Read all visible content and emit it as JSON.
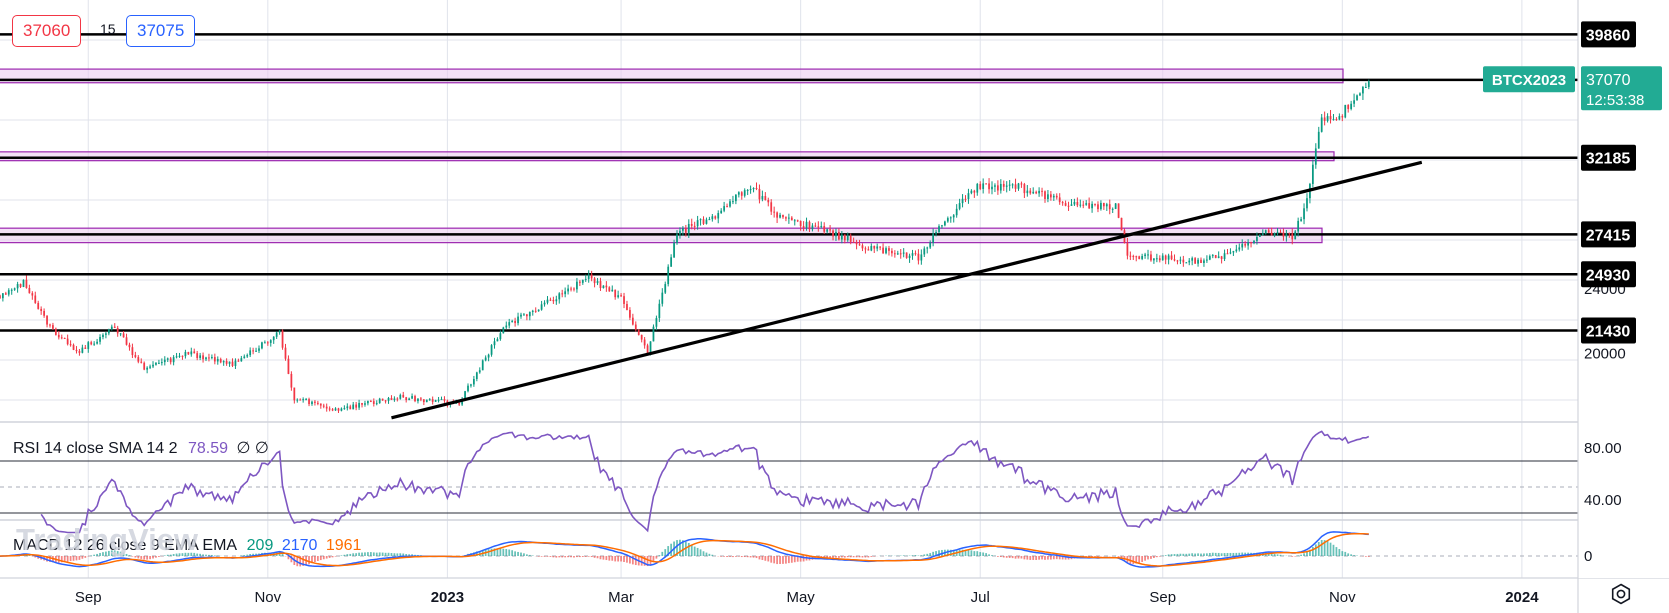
{
  "chart_data": {
    "type": "candlestick",
    "symbol": "BTCX2023",
    "last_price": "37070",
    "countdown": "12:53:38",
    "bid": "37060",
    "ask": "37075",
    "spread": "15",
    "x_tick_labels": [
      "Sep",
      "Nov",
      "2023",
      "Mar",
      "May",
      "Jul",
      "Sep",
      "Nov",
      "2024"
    ],
    "y_tick_labels": [
      "20000",
      "24000"
    ],
    "ylim": [
      15800,
      42000
    ],
    "horizontal_levels": [
      "39860",
      "37030",
      "32185",
      "27415",
      "24930",
      "21430"
    ],
    "resistance_zones": [
      [
        36850,
        37700
      ],
      [
        32000,
        32550
      ],
      [
        26900,
        27800
      ]
    ],
    "trendline": {
      "from": [
        "2022-12-13",
        16000
      ],
      "to": [
        "2023-11-28",
        31900
      ]
    },
    "watermark": "TradingView",
    "price_closes_approx": [
      {
        "date": "2022-08-01",
        "close": 23500
      },
      {
        "date": "2022-08-10",
        "close": 24400
      },
      {
        "date": "2022-08-20",
        "close": 21400
      },
      {
        "date": "2022-08-28",
        "close": 20100
      },
      {
        "date": "2022-09-10",
        "close": 21600
      },
      {
        "date": "2022-09-20",
        "close": 19000
      },
      {
        "date": "2022-10-05",
        "close": 20000
      },
      {
        "date": "2022-10-20",
        "close": 19300
      },
      {
        "date": "2022-11-05",
        "close": 21300
      },
      {
        "date": "2022-11-10",
        "close": 17200
      },
      {
        "date": "2022-11-25",
        "close": 16500
      },
      {
        "date": "2022-12-15",
        "close": 17300
      },
      {
        "date": "2023-01-05",
        "close": 16900
      },
      {
        "date": "2023-01-20",
        "close": 21600
      },
      {
        "date": "2023-02-05",
        "close": 23300
      },
      {
        "date": "2023-02-18",
        "close": 24700
      },
      {
        "date": "2023-03-01",
        "close": 23500
      },
      {
        "date": "2023-03-10",
        "close": 20000
      },
      {
        "date": "2023-03-20",
        "close": 27500
      },
      {
        "date": "2023-04-01",
        "close": 28500
      },
      {
        "date": "2023-04-14",
        "close": 30400
      },
      {
        "date": "2023-04-25",
        "close": 28300
      },
      {
        "date": "2023-05-08",
        "close": 27800
      },
      {
        "date": "2023-05-25",
        "close": 26500
      },
      {
        "date": "2023-06-10",
        "close": 26000
      },
      {
        "date": "2023-06-20",
        "close": 28500
      },
      {
        "date": "2023-07-01",
        "close": 30500
      },
      {
        "date": "2023-07-15",
        "close": 30300
      },
      {
        "date": "2023-08-01",
        "close": 29300
      },
      {
        "date": "2023-08-16",
        "close": 29100
      },
      {
        "date": "2023-08-20",
        "close": 26100
      },
      {
        "date": "2023-09-01",
        "close": 25900
      },
      {
        "date": "2023-09-12",
        "close": 25800
      },
      {
        "date": "2023-09-25",
        "close": 26200
      },
      {
        "date": "2023-10-05",
        "close": 27500
      },
      {
        "date": "2023-10-15",
        "close": 27200
      },
      {
        "date": "2023-10-20",
        "close": 29500
      },
      {
        "date": "2023-10-25",
        "close": 34500
      },
      {
        "date": "2023-11-01",
        "close": 35000
      },
      {
        "date": "2023-11-10",
        "close": 37070
      }
    ],
    "indicators": {
      "rsi": {
        "label": "RSI 14 close SMA 14 2",
        "value": "78.59",
        "extra": "∅ ∅",
        "levels": [
          "80.00",
          "40.00"
        ]
      },
      "macd": {
        "label": "MACD 12 26 close 9 EMA EMA",
        "histogram": "209",
        "macd": "2170",
        "signal": "1961",
        "zero_label": "0"
      }
    }
  },
  "colors": {
    "up": "#089981",
    "down": "#f23645",
    "rsi": "#7e57c2",
    "macd": "#2962ff",
    "signal": "#ff6d00",
    "zone_fill": "#e9c8ee",
    "zone_border": "#9c27b0",
    "price_badge": "#22ab94",
    "gridline": "#e0e3eb"
  },
  "settings_icon": "gear-icon"
}
